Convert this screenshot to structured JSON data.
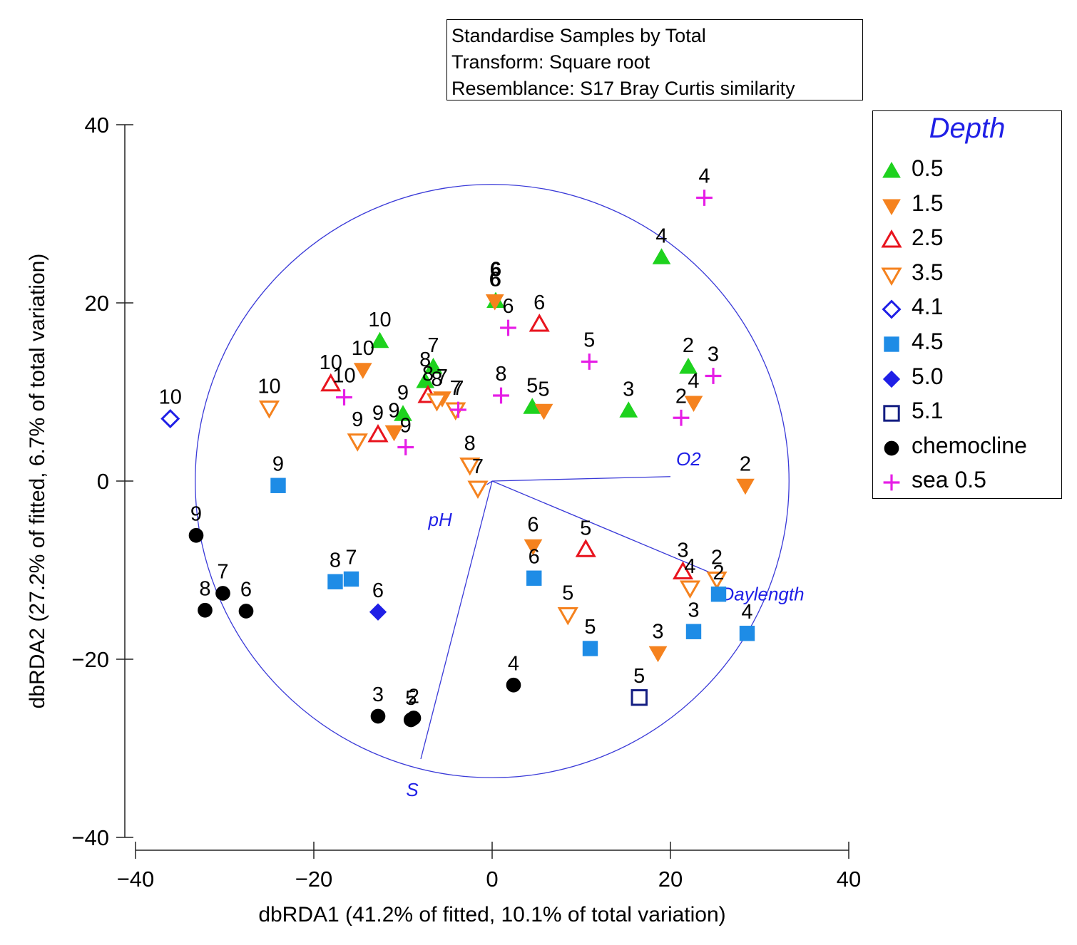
{
  "info_box": {
    "lines": [
      "Standardise Samples by Total",
      "Transform: Square root",
      "Resemblance: S17 Bray Curtis similarity"
    ]
  },
  "legend": {
    "title": "Depth",
    "items": [
      {
        "key": "d05",
        "label": "0.5"
      },
      {
        "key": "d15",
        "label": "1.5"
      },
      {
        "key": "d25",
        "label": "2.5"
      },
      {
        "key": "d35",
        "label": "3.5"
      },
      {
        "key": "d41",
        "label": "4.1"
      },
      {
        "key": "d45",
        "label": "4.5"
      },
      {
        "key": "d50",
        "label": "5.0"
      },
      {
        "key": "d51",
        "label": "5.1"
      },
      {
        "key": "chem",
        "label": "chemocline"
      },
      {
        "key": "sea",
        "label": "sea 0.5"
      }
    ]
  },
  "chart_data": {
    "type": "scatter",
    "xlabel": "dbRDA1 (41.2% of fitted, 10.1% of total variation)",
    "ylabel": "dbRDA2 (27.2% of fitted, 6.7% of total variation)",
    "xlim": [
      -40,
      40
    ],
    "ylim": [
      -40,
      40
    ],
    "xticks": [
      -40,
      -20,
      0,
      20,
      40
    ],
    "yticks": [
      -40,
      -20,
      0,
      20,
      40
    ],
    "x_tick_labels": [
      "−40",
      "−20",
      "0",
      "20",
      "40"
    ],
    "y_tick_labels": [
      "−40",
      "−20",
      "0",
      "20",
      "40"
    ],
    "circle_radius": 33.3,
    "vectors": [
      {
        "label": "O2",
        "x": 20,
        "y": 0.5
      },
      {
        "label": "pH",
        "x": -0.6,
        "y": -0.4
      },
      {
        "label": "Daylength",
        "x": 25,
        "y": -10.5
      },
      {
        "label": "S",
        "x": -8,
        "y": -31.2
      }
    ],
    "series": [
      {
        "name": "0.5",
        "color": "#1ed21e",
        "points": [
          {
            "x": 19,
            "y": 25.1,
            "label": "4"
          },
          {
            "x": 0.4,
            "y": 20.2,
            "label": "6"
          },
          {
            "x": -12.6,
            "y": 15.7,
            "label": "10"
          },
          {
            "x": 22,
            "y": 12.8,
            "label": "2"
          },
          {
            "x": -6.6,
            "y": 12.8,
            "label": "7"
          },
          {
            "x": -7.5,
            "y": 11.2,
            "label": "8"
          },
          {
            "x": -10,
            "y": 7.5,
            "label": "9"
          },
          {
            "x": 4.5,
            "y": 8.3,
            "label": "5"
          },
          {
            "x": 15.3,
            "y": 7.9,
            "label": "3"
          }
        ]
      },
      {
        "name": "1.5",
        "color": "#f5821e",
        "points": [
          {
            "x": 0.3,
            "y": 20.2,
            "label": "6"
          },
          {
            "x": -14.5,
            "y": 12.5,
            "label": "10"
          },
          {
            "x": -5.6,
            "y": 9.3,
            "label": "7"
          },
          {
            "x": -11,
            "y": 5.5,
            "label": "9"
          },
          {
            "x": 5.8,
            "y": 7.9,
            "label": "5"
          },
          {
            "x": 22.6,
            "y": 8.8,
            "label": "4"
          },
          {
            "x": 28.4,
            "y": -0.5,
            "label": "2"
          },
          {
            "x": 4.6,
            "y": -7.3,
            "label": "6"
          },
          {
            "x": 18.6,
            "y": -19.3,
            "label": "3"
          }
        ]
      },
      {
        "name": "2.5",
        "color": "#e8141e",
        "points": [
          {
            "x": 5.3,
            "y": 17.6,
            "label": "6"
          },
          {
            "x": -18.1,
            "y": 10.9,
            "label": "10"
          },
          {
            "x": -7.2,
            "y": 9.6,
            "label": "8"
          },
          {
            "x": -12.8,
            "y": 5.2,
            "label": "9"
          },
          {
            "x": 10.5,
            "y": -7.7,
            "label": "5"
          },
          {
            "x": 21.4,
            "y": -10.2,
            "label": "3"
          }
        ]
      },
      {
        "name": "3.5",
        "color": "#f5821e",
        "points": [
          {
            "x": -25,
            "y": 8.2,
            "label": "10"
          },
          {
            "x": -6.2,
            "y": 9.0,
            "label": "8"
          },
          {
            "x": -4.1,
            "y": 8.0,
            "label": "7"
          },
          {
            "x": -15.1,
            "y": 4.5,
            "label": "9"
          },
          {
            "x": -2.5,
            "y": 1.8,
            "label": "8"
          },
          {
            "x": -1.6,
            "y": -0.8,
            "label": "7"
          },
          {
            "x": 8.5,
            "y": -15,
            "label": "5"
          },
          {
            "x": 22.2,
            "y": -12,
            "label": "4"
          },
          {
            "x": 25.2,
            "y": -11,
            "label": "2"
          }
        ]
      },
      {
        "name": "4.1",
        "color": "#1f1fe6",
        "points": [
          {
            "x": -36.1,
            "y": 7.0,
            "label": "10"
          }
        ]
      },
      {
        "name": "4.5",
        "color": "#1e8ce6",
        "points": [
          {
            "x": -24,
            "y": -0.5,
            "label": "9"
          },
          {
            "x": -17.6,
            "y": -11.3,
            "label": "8"
          },
          {
            "x": -15.8,
            "y": -11.0,
            "label": "7"
          },
          {
            "x": 4.7,
            "y": -10.9,
            "label": "6"
          },
          {
            "x": 11,
            "y": -18.8,
            "label": "5"
          },
          {
            "x": 22.6,
            "y": -16.9,
            "label": "3"
          },
          {
            "x": 25.4,
            "y": -12.7,
            "label": "2"
          },
          {
            "x": 28.6,
            "y": -17.1,
            "label": "4"
          }
        ]
      },
      {
        "name": "5.0",
        "color": "#1f1fe6",
        "points": [
          {
            "x": -12.8,
            "y": -14.7,
            "label": "6"
          }
        ]
      },
      {
        "name": "5.1",
        "color": "#141e82",
        "points": [
          {
            "x": 16.5,
            "y": -24.3,
            "label": "5"
          }
        ]
      },
      {
        "name": "chemocline",
        "color": "#000000",
        "points": [
          {
            "x": -33.2,
            "y": -6.1,
            "label": "9"
          },
          {
            "x": -30.2,
            "y": -12.6,
            "label": "7"
          },
          {
            "x": -32.2,
            "y": -14.5,
            "label": "8"
          },
          {
            "x": -27.6,
            "y": -14.6,
            "label": "6"
          },
          {
            "x": 2.4,
            "y": -22.9,
            "label": "4"
          },
          {
            "x": -12.8,
            "y": -26.4,
            "label": "3"
          },
          {
            "x": -8.8,
            "y": -26.6,
            "label": "2"
          },
          {
            "x": -9.1,
            "y": -26.8,
            "label": "5"
          }
        ]
      },
      {
        "name": "sea 0.5",
        "color": "#e61ee6",
        "points": [
          {
            "x": 23.8,
            "y": 31.8,
            "label": "4"
          },
          {
            "x": 1.8,
            "y": 17.2,
            "label": "6"
          },
          {
            "x": 10.9,
            "y": 13.4,
            "label": "5"
          },
          {
            "x": 24.8,
            "y": 11.8,
            "label": "3"
          },
          {
            "x": 1.0,
            "y": 9.6,
            "label": "8"
          },
          {
            "x": 21.2,
            "y": 7.1,
            "label": "2"
          },
          {
            "x": -16.6,
            "y": 9.4,
            "label": "10"
          },
          {
            "x": -3.8,
            "y": 8.0,
            "label": "7"
          },
          {
            "x": -9.7,
            "y": 3.8,
            "label": "9"
          }
        ]
      }
    ],
    "extra_labels": [
      {
        "text": "6",
        "x": 0.4,
        "y": 23.0
      }
    ]
  }
}
